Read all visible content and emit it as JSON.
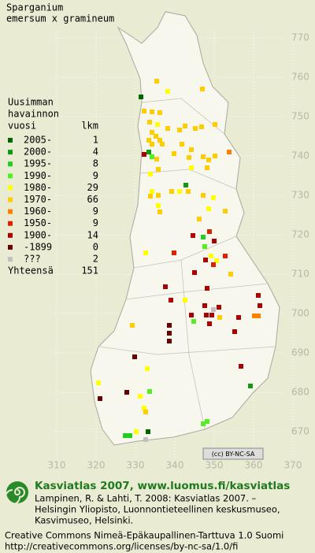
{
  "title": {
    "lines": [
      "Sparganium",
      "emersum x gramineum"
    ]
  },
  "legend": {
    "heading": [
      "Uusimman",
      "havainnon",
      "vuosi"
    ],
    "count_heading": "lkm",
    "entries": [
      {
        "label": "2005-",
        "count": 1,
        "color": "#006600"
      },
      {
        "label": "2000-",
        "count": 4,
        "color": "#119911"
      },
      {
        "label": "1995-",
        "count": 8,
        "color": "#22cc22"
      },
      {
        "label": "1990-",
        "count": 9,
        "color": "#55ee22"
      },
      {
        "label": "1980-",
        "count": 29,
        "color": "#ffff00"
      },
      {
        "label": "1970-",
        "count": 66,
        "color": "#ffcc00"
      },
      {
        "label": "1960-",
        "count": 9,
        "color": "#ff8000"
      },
      {
        "label": "1950-",
        "count": 9,
        "color": "#dd2200"
      },
      {
        "label": "1900-",
        "count": 14,
        "color": "#aa0000"
      },
      {
        "label": "-1899",
        "count": 0,
        "color": "#660000"
      },
      {
        "label": "???",
        "count": 2,
        "color": "#c0c0c0"
      }
    ],
    "total": {
      "label": "Yhteensä",
      "count": 151
    }
  },
  "axes": {
    "y_ticks": [
      770,
      760,
      750,
      740,
      730,
      720,
      710,
      700,
      690,
      680,
      670
    ],
    "x_ticks": [
      310,
      320,
      330,
      340,
      350,
      360,
      370
    ]
  },
  "license_badge": "(cc) BY-NC-SA",
  "footer": {
    "heading": "Kasviatlas 2007, www.luomus.fi/kasviatlas",
    "citation": [
      "Lampinen, R. & Lahti, T. 2008: Kasviatlas 2007. –",
      "Helsingin Yliopisto, Luonnontieteellinen keskusmuseo,",
      "Kasvimuseo, Helsinki."
    ],
    "license": [
      "Creative Commons Nimeä-Epäkaupallinen-Tarttuva 1.0 Suomi",
      "http://creativecommons.org/licenses/by-nc-sa/1.0/fi"
    ]
  }
}
